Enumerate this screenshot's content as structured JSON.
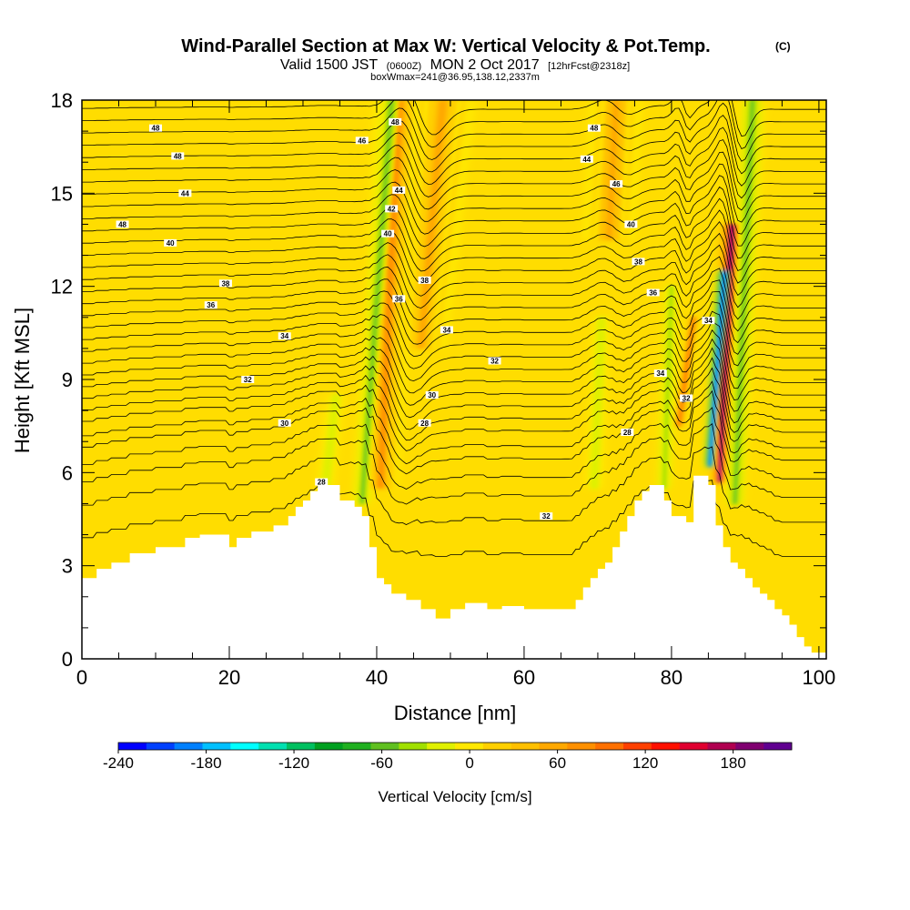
{
  "chart_data": {
    "type": "heatmap",
    "title": "Wind-Parallel Section at Max W: Vertical Velocity & Pot.Temp.",
    "title_mark": "(C)",
    "subtitle": {
      "prefix": "Valid 1500 JST",
      "utc": "(0600Z)",
      "date": "MON 2 Oct 2017",
      "forecast": "[12hrFcst@2318z]"
    },
    "box_line": "boxWmax=241@36.95,138.12,2337m",
    "xlabel": "Distance [nm]",
    "ylabel": "Height [Kft MSL]",
    "xlim": [
      0,
      101
    ],
    "ylim": [
      0,
      18
    ],
    "xticks": [
      0,
      20,
      40,
      60,
      80,
      100
    ],
    "yticks": [
      0,
      3,
      6,
      9,
      12,
      15,
      18
    ],
    "colorbar": {
      "label": "Vertical Velocity [cm/s]",
      "range": [
        -240,
        220
      ],
      "tick_values": [
        -240,
        -180,
        -120,
        -60,
        0,
        60,
        120,
        180
      ],
      "tick_labels": [
        "-240",
        "-180",
        "-120",
        "-60",
        "0",
        "60",
        "120",
        "180"
      ],
      "colors": [
        "#0000ff",
        "#0040ff",
        "#0080ff",
        "#00c0ff",
        "#00ffff",
        "#00e0b0",
        "#00c060",
        "#00a020",
        "#20b020",
        "#60c020",
        "#a0e000",
        "#e0f000",
        "#ffe800",
        "#ffd000",
        "#ffc000",
        "#ffa800",
        "#ff9000",
        "#ff7000",
        "#ff4000",
        "#ff1000",
        "#e00030",
        "#b00050",
        "#800070",
        "#600090"
      ]
    },
    "grid": false,
    "terrain": [
      [
        0,
        2.6
      ],
      [
        2,
        2.6
      ],
      [
        2,
        2.9
      ],
      [
        4,
        2.9
      ],
      [
        4,
        3.1
      ],
      [
        6.5,
        3.1
      ],
      [
        6.5,
        3.4
      ],
      [
        10,
        3.4
      ],
      [
        10,
        3.6
      ],
      [
        14,
        3.6
      ],
      [
        14,
        3.9
      ],
      [
        16,
        3.9
      ],
      [
        16,
        4.0
      ],
      [
        20,
        4.0
      ],
      [
        20,
        3.6
      ],
      [
        21,
        3.6
      ],
      [
        21,
        3.9
      ],
      [
        23,
        3.9
      ],
      [
        23,
        4.1
      ],
      [
        26,
        4.1
      ],
      [
        26,
        4.3
      ],
      [
        28,
        4.3
      ],
      [
        28,
        4.6
      ],
      [
        29,
        4.6
      ],
      [
        29,
        4.9
      ],
      [
        30,
        4.9
      ],
      [
        30,
        5.1
      ],
      [
        31,
        5.1
      ],
      [
        31,
        5.4
      ],
      [
        32,
        5.4
      ],
      [
        32,
        5.6
      ],
      [
        35,
        5.6
      ],
      [
        35,
        5.1
      ],
      [
        37,
        5.1
      ],
      [
        37,
        4.9
      ],
      [
        38,
        4.9
      ],
      [
        38,
        4.6
      ],
      [
        39,
        4.6
      ],
      [
        39,
        3.6
      ],
      [
        40,
        3.6
      ],
      [
        40,
        2.6
      ],
      [
        41,
        2.6
      ],
      [
        41,
        2.4
      ],
      [
        42,
        2.4
      ],
      [
        42,
        2.1
      ],
      [
        44,
        2.1
      ],
      [
        44,
        1.9
      ],
      [
        46,
        1.9
      ],
      [
        46,
        1.6
      ],
      [
        48,
        1.6
      ],
      [
        48,
        1.3
      ],
      [
        50,
        1.3
      ],
      [
        50,
        1.6
      ],
      [
        52,
        1.6
      ],
      [
        52,
        1.8
      ],
      [
        55,
        1.8
      ],
      [
        55,
        1.6
      ],
      [
        57,
        1.6
      ],
      [
        57,
        1.7
      ],
      [
        60,
        1.7
      ],
      [
        60,
        1.6
      ],
      [
        67,
        1.6
      ],
      [
        67,
        1.9
      ],
      [
        68,
        1.9
      ],
      [
        68,
        2.3
      ],
      [
        69,
        2.3
      ],
      [
        69,
        2.6
      ],
      [
        70,
        2.6
      ],
      [
        70,
        2.9
      ],
      [
        71,
        2.9
      ],
      [
        71,
        3.1
      ],
      [
        72,
        3.1
      ],
      [
        72,
        3.6
      ],
      [
        73,
        3.6
      ],
      [
        73,
        4.1
      ],
      [
        74,
        4.1
      ],
      [
        74,
        4.6
      ],
      [
        75,
        4.6
      ],
      [
        75,
        5.1
      ],
      [
        76,
        5.1
      ],
      [
        76,
        5.4
      ],
      [
        77,
        5.4
      ],
      [
        77,
        5.6
      ],
      [
        79,
        5.6
      ],
      [
        79,
        5.1
      ],
      [
        80,
        5.1
      ],
      [
        80,
        4.6
      ],
      [
        82,
        4.6
      ],
      [
        82,
        4.4
      ],
      [
        83,
        4.4
      ],
      [
        83,
        5.9
      ],
      [
        85,
        5.9
      ],
      [
        85,
        5.6
      ],
      [
        86,
        5.6
      ],
      [
        86,
        4.3
      ],
      [
        87,
        4.3
      ],
      [
        87,
        3.6
      ],
      [
        88,
        3.6
      ],
      [
        88,
        3.1
      ],
      [
        89,
        3.1
      ],
      [
        89,
        2.9
      ],
      [
        90,
        2.9
      ],
      [
        90,
        2.6
      ],
      [
        91,
        2.6
      ],
      [
        91,
        2.3
      ],
      [
        92,
        2.3
      ],
      [
        92,
        2.1
      ],
      [
        93,
        2.1
      ],
      [
        93,
        1.9
      ],
      [
        94,
        1.9
      ],
      [
        94,
        1.6
      ],
      [
        95,
        1.6
      ],
      [
        95,
        1.4
      ],
      [
        96,
        1.4
      ],
      [
        96,
        1.1
      ],
      [
        97,
        1.1
      ],
      [
        97,
        0.7
      ],
      [
        98,
        0.7
      ],
      [
        98,
        0.4
      ],
      [
        99,
        0.4
      ],
      [
        99,
        0.2
      ],
      [
        101,
        0.2
      ]
    ],
    "updrafts": [
      {
        "x0": 40.5,
        "y0": 5.5,
        "x1": 43.0,
        "y1": 18.0,
        "w0": 1.4,
        "w1": 2.0,
        "value": 80
      },
      {
        "x0": 86.5,
        "y0": 5.7,
        "x1": 88.2,
        "y1": 14.0,
        "w0": 0.7,
        "w1": 1.0,
        "value": 200
      },
      {
        "x0": 81.0,
        "y0": 7.5,
        "x1": 83.0,
        "y1": 11.0,
        "w0": 0.6,
        "w1": 0.6,
        "value": 110
      },
      {
        "x0": 46.0,
        "y0": 10.0,
        "x1": 49.0,
        "y1": 18.0,
        "w0": 2.0,
        "w1": 2.5,
        "value": 50
      },
      {
        "x0": 71.5,
        "y0": 13.5,
        "x1": 72.5,
        "y1": 18.0,
        "w0": 2.0,
        "w1": 2.0,
        "value": 60
      }
    ],
    "downdrafts": [
      {
        "x0": 38.0,
        "y0": 5.0,
        "x1": 42.0,
        "y1": 18.0,
        "w0": 0.8,
        "w1": 1.0,
        "value": -55
      },
      {
        "x0": 85.2,
        "y0": 6.2,
        "x1": 87.2,
        "y1": 12.5,
        "w0": 0.5,
        "w1": 0.7,
        "value": -220
      },
      {
        "x0": 88.6,
        "y0": 5.0,
        "x1": 91.0,
        "y1": 18.0,
        "w0": 0.8,
        "w1": 1.0,
        "value": -60
      },
      {
        "x0": 79.0,
        "y0": 5.5,
        "x1": 80.0,
        "y1": 12.0,
        "w0": 0.6,
        "w1": 0.6,
        "value": -40
      },
      {
        "x0": 33.0,
        "y0": 5.5,
        "x1": 34.5,
        "y1": 8.5,
        "w0": 0.7,
        "w1": 0.7,
        "value": -30
      },
      {
        "x0": 69.5,
        "y0": 5.5,
        "x1": 70.5,
        "y1": 11.0,
        "w0": 0.7,
        "w1": 0.7,
        "value": -30
      }
    ],
    "isentropes": {
      "base_heights": [
        3.3,
        4.4,
        5.2,
        5.8,
        6.4,
        6.8,
        7.3,
        7.7,
        8.1,
        8.5,
        8.9,
        9.3,
        9.7,
        10.1,
        10.5,
        10.9,
        11.3,
        11.7,
        12.1,
        12.5,
        12.9,
        13.3,
        13.7,
        14.1,
        14.5,
        14.9,
        15.3,
        15.7,
        16.1,
        16.5,
        16.9,
        17.3,
        17.7
      ],
      "labels": [
        {
          "text": "28",
          "x": 32.5,
          "y": 5.7
        },
        {
          "text": "28",
          "x": 46.5,
          "y": 7.6
        },
        {
          "text": "28",
          "x": 74.0,
          "y": 7.3
        },
        {
          "text": "30",
          "x": 27.5,
          "y": 7.6
        },
        {
          "text": "30",
          "x": 47.5,
          "y": 8.5
        },
        {
          "text": "32",
          "x": 22.5,
          "y": 9.0
        },
        {
          "text": "32",
          "x": 56.0,
          "y": 9.6
        },
        {
          "text": "32",
          "x": 63.0,
          "y": 4.6
        },
        {
          "text": "32",
          "x": 82.0,
          "y": 8.4
        },
        {
          "text": "34",
          "x": 27.5,
          "y": 10.4
        },
        {
          "text": "34",
          "x": 49.5,
          "y": 10.6
        },
        {
          "text": "34",
          "x": 85.0,
          "y": 10.9
        },
        {
          "text": "34",
          "x": 78.5,
          "y": 9.2
        },
        {
          "text": "36",
          "x": 17.5,
          "y": 11.4
        },
        {
          "text": "36",
          "x": 43.0,
          "y": 11.6
        },
        {
          "text": "36",
          "x": 77.5,
          "y": 11.8
        },
        {
          "text": "38",
          "x": 19.5,
          "y": 12.1
        },
        {
          "text": "38",
          "x": 46.5,
          "y": 12.2
        },
        {
          "text": "38",
          "x": 75.5,
          "y": 12.8
        },
        {
          "text": "40",
          "x": 12.0,
          "y": 13.4
        },
        {
          "text": "40",
          "x": 41.5,
          "y": 13.7
        },
        {
          "text": "40",
          "x": 74.5,
          "y": 14.0
        },
        {
          "text": "42",
          "x": 42.0,
          "y": 14.5
        },
        {
          "text": "44",
          "x": 14.0,
          "y": 15.0
        },
        {
          "text": "44",
          "x": 43.0,
          "y": 15.1
        },
        {
          "text": "44",
          "x": 68.5,
          "y": 16.1
        },
        {
          "text": "46",
          "x": 38.0,
          "y": 16.7
        },
        {
          "text": "46",
          "x": 72.5,
          "y": 15.3
        },
        {
          "text": "48",
          "x": 5.5,
          "y": 14.0
        },
        {
          "text": "48",
          "x": 13.0,
          "y": 16.2
        },
        {
          "text": "48",
          "x": 42.5,
          "y": 17.3
        },
        {
          "text": "48",
          "x": 69.5,
          "y": 17.1
        },
        {
          "text": "48",
          "x": 10.0,
          "y": 17.1
        }
      ]
    }
  }
}
